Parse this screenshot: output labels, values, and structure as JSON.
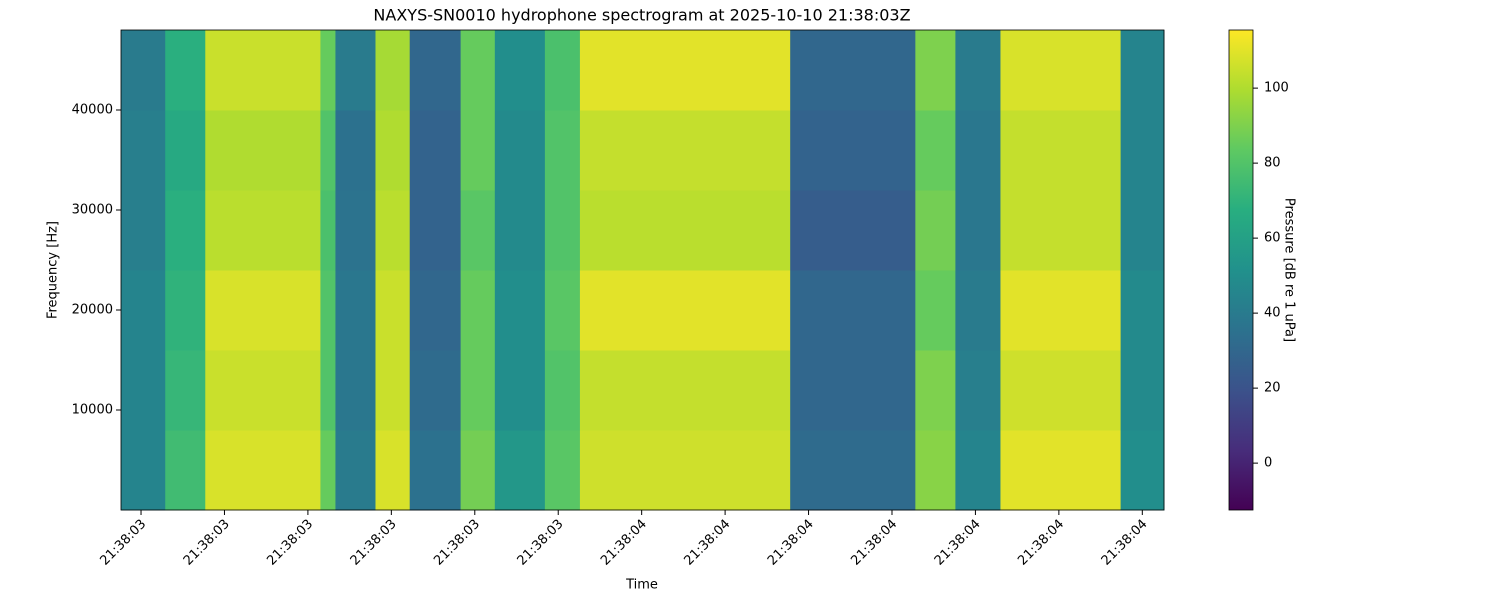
{
  "chart_data": {
    "type": "heatmap",
    "title": "NAXYS-SN0010 hydrophone spectrogram at 2025-10-10 21:38:03Z",
    "x_label": "Time",
    "y_label": "Frequency [Hz]",
    "colorbar_label": "Pressure [dB re 1 uPa]",
    "colormap": "viridis",
    "x_edges": [
      3.376,
      3.429,
      3.477,
      3.615,
      3.633,
      3.681,
      3.722,
      3.783,
      3.824,
      3.884,
      3.926,
      4.178,
      4.328,
      4.376,
      4.43,
      4.574,
      4.626
    ],
    "y_edges": [
      0,
      8000,
      16000,
      24000,
      32000,
      40000,
      48000
    ],
    "z": [
      [
        45,
        75,
        108,
        85,
        40,
        108,
        35,
        88,
        55,
        82,
        106,
        32,
        92,
        45,
        110,
        50
      ],
      [
        45,
        72,
        105,
        80,
        38,
        105,
        32,
        85,
        50,
        80,
        104,
        30,
        90,
        42,
        106,
        48
      ],
      [
        45,
        70,
        108,
        80,
        38,
        105,
        30,
        85,
        50,
        82,
        110,
        30,
        85,
        40,
        110,
        48
      ],
      [
        42,
        68,
        102,
        78,
        36,
        102,
        28,
        82,
        48,
        80,
        102,
        25,
        88,
        38,
        104,
        45
      ],
      [
        42,
        65,
        100,
        80,
        35,
        100,
        28,
        85,
        48,
        80,
        104,
        28,
        85,
        38,
        104,
        45
      ],
      [
        40,
        68,
        105,
        85,
        40,
        98,
        30,
        85,
        50,
        78,
        110,
        30,
        90,
        40,
        108,
        45
      ]
    ],
    "xlim": [
      3.376,
      4.626
    ],
    "ylim": [
      0,
      48000
    ],
    "clim": [
      -12.5,
      115.5
    ],
    "xticks": [
      {
        "value": 3.4,
        "label": "21:38:03"
      },
      {
        "value": 3.5,
        "label": "21:38:03"
      },
      {
        "value": 3.6,
        "label": "21:38:03"
      },
      {
        "value": 3.7,
        "label": "21:38:03"
      },
      {
        "value": 3.8,
        "label": "21:38:03"
      },
      {
        "value": 3.9,
        "label": "21:38:03"
      },
      {
        "value": 4.0,
        "label": "21:38:04"
      },
      {
        "value": 4.1,
        "label": "21:38:04"
      },
      {
        "value": 4.2,
        "label": "21:38:04"
      },
      {
        "value": 4.3,
        "label": "21:38:04"
      },
      {
        "value": 4.4,
        "label": "21:38:04"
      },
      {
        "value": 4.5,
        "label": "21:38:04"
      },
      {
        "value": 4.6,
        "label": "21:38:04"
      }
    ],
    "yticks": [
      10000,
      20000,
      30000,
      40000
    ],
    "cticks": [
      0,
      20,
      40,
      60,
      80,
      100
    ]
  }
}
